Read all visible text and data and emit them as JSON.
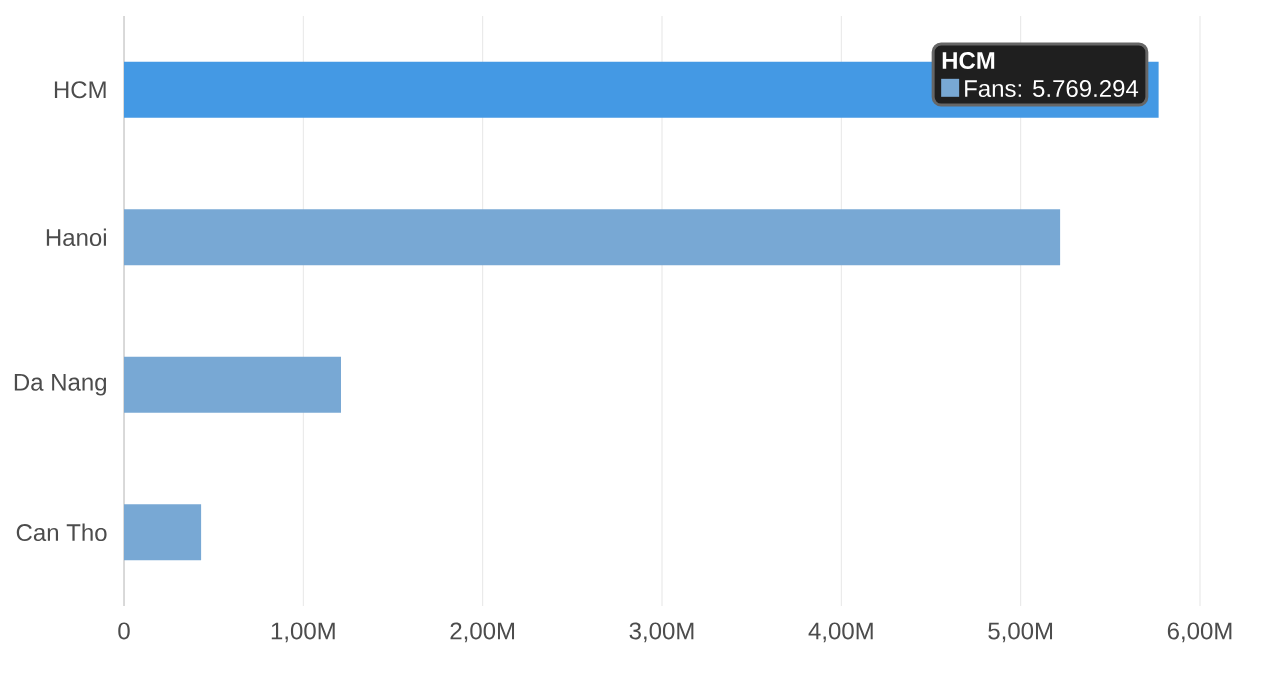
{
  "chart_data": {
    "type": "bar",
    "orientation": "horizontal",
    "categories": [
      "HCM",
      "Hanoi",
      "Da Nang",
      "Can Tho"
    ],
    "values": [
      5.769294,
      5.22,
      1.21,
      0.43
    ],
    "colors": [
      "#4499e4",
      "#78a8d4",
      "#78a8d4",
      "#78a8d4"
    ],
    "xlim": [
      0,
      6
    ],
    "xticks": [
      0,
      {
        "value": 1,
        "label": "1,00M"
      },
      {
        "value": 2,
        "label": "2,00M"
      },
      {
        "value": 3,
        "label": "3,00M"
      },
      {
        "value": 4,
        "label": "4,00M"
      },
      {
        "value": 5,
        "label": "5,00M"
      },
      {
        "value": 6,
        "label": "6,00M"
      }
    ],
    "grid": "x",
    "annotations": [
      "HCM",
      "Fans: 5.769.294"
    ]
  }
}
